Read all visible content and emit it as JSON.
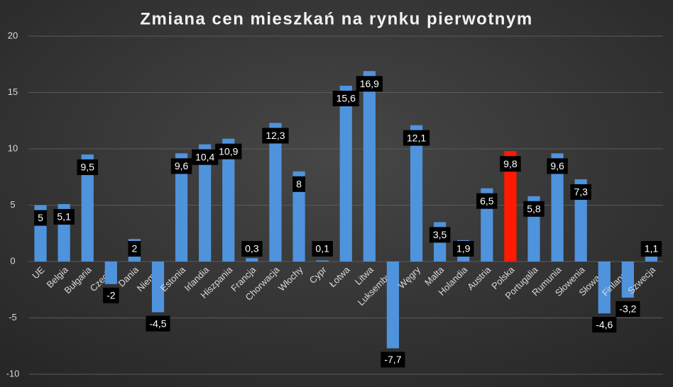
{
  "chart_data": {
    "type": "bar",
    "title": "Zmiana cen mieszkań na rynku pierwotnym",
    "categories": [
      "UE",
      "Belgia",
      "Bułgaria",
      "Czechy",
      "Dania",
      "Niemcy",
      "Estonia",
      "Irlandia",
      "Hiszpania",
      "Francja",
      "Chorwacja",
      "Włochy",
      "Cypr",
      "Łotwa",
      "Litwa",
      "Luksemburg",
      "Węgry",
      "Malta",
      "Holandia",
      "Austria",
      "Polska",
      "Portugalia",
      "Rumunia",
      "Słowenia",
      "Słowacja",
      "Finlandia",
      "Szwecja"
    ],
    "values": [
      5,
      5.1,
      9.5,
      -2,
      2,
      -4.5,
      9.6,
      10.4,
      10.9,
      0.3,
      12.3,
      8,
      0.1,
      15.6,
      16.9,
      -7.7,
      12.1,
      3.5,
      1.9,
      6.5,
      9.8,
      5.8,
      9.6,
      7.3,
      -4.6,
      -3.2,
      1.1
    ],
    "value_labels": [
      "5",
      "5,1",
      "9,5",
      "-2",
      "2",
      "-4,5",
      "9,6",
      "10,4",
      "10,9",
      "0,3",
      "12,3",
      "8",
      "0,1",
      "15,6",
      "16,9",
      "-7,7",
      "12,1",
      "3,5",
      "1,9",
      "6,5",
      "9,8",
      "5,8",
      "9,6",
      "7,3",
      "-4,6",
      "-3,2",
      "1,1"
    ],
    "colors": [
      "#4f93dc",
      "#4f93dc",
      "#4f93dc",
      "#4f93dc",
      "#4f93dc",
      "#4f93dc",
      "#4f93dc",
      "#4f93dc",
      "#4f93dc",
      "#4f93dc",
      "#4f93dc",
      "#4f93dc",
      "#4f93dc",
      "#4f93dc",
      "#4f93dc",
      "#4f93dc",
      "#4f93dc",
      "#4f93dc",
      "#4f93dc",
      "#4f93dc",
      "#ff1a00",
      "#4f93dc",
      "#4f93dc",
      "#4f93dc",
      "#4f93dc",
      "#4f93dc",
      "#4f93dc"
    ],
    "ylim": [
      -10,
      20
    ],
    "yticks": [
      -10,
      -5,
      0,
      5,
      10,
      15,
      20
    ],
    "grid": true
  }
}
